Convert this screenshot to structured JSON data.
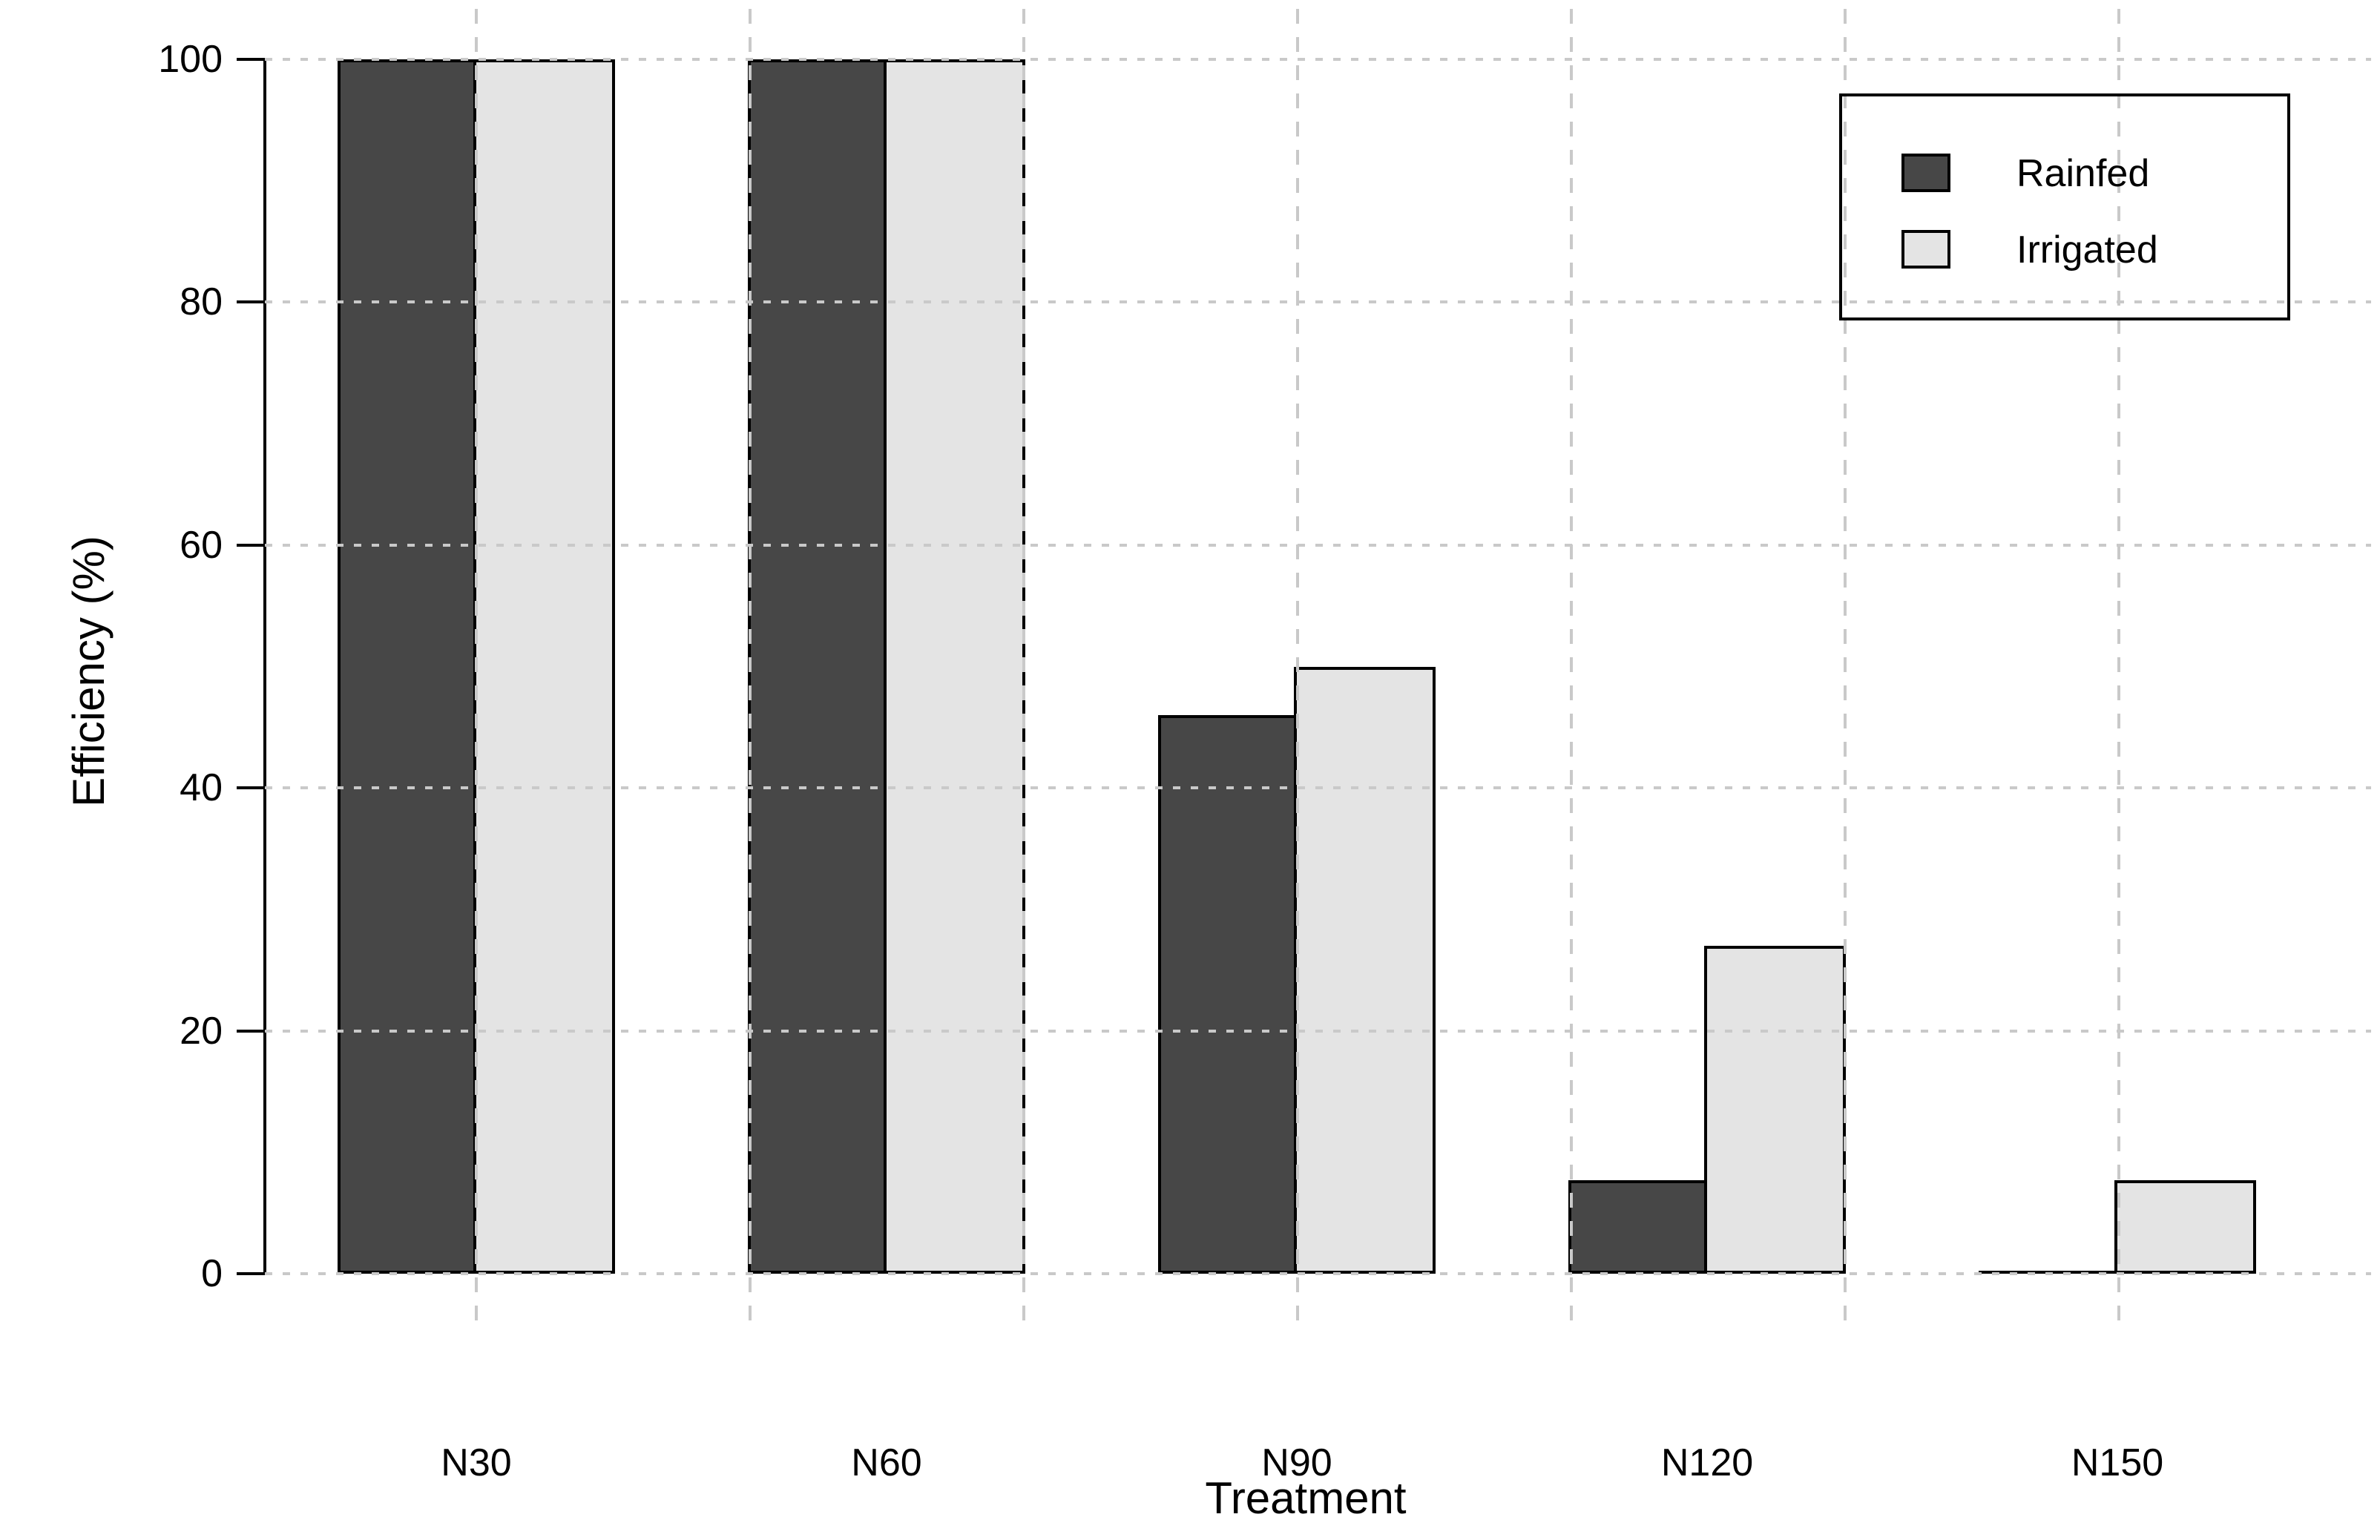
{
  "chart_data": {
    "type": "bar",
    "title": "",
    "xlabel": "Treatment",
    "ylabel": "Efficiency (%)",
    "categories": [
      "N30",
      "N60",
      "N90",
      "N120",
      "N150"
    ],
    "series": [
      {
        "name": "Rainfed",
        "color": "#474747",
        "values": [
          100,
          100,
          46,
          7.7,
          0
        ]
      },
      {
        "name": "Irrigated",
        "color": "#e4e4e4",
        "values": [
          100,
          100,
          50,
          27,
          7.7
        ]
      }
    ],
    "ylim": [
      0,
      100
    ],
    "yticks": [
      0,
      20,
      40,
      60,
      80,
      100
    ],
    "grid": "dotted light-gray, horizontal at every y tick and vertical lines, drawn over bars",
    "grid_color": "#c9c9c9",
    "bar_border_color": "#000000",
    "legend_position": "top-right",
    "background": "#ffffff"
  }
}
